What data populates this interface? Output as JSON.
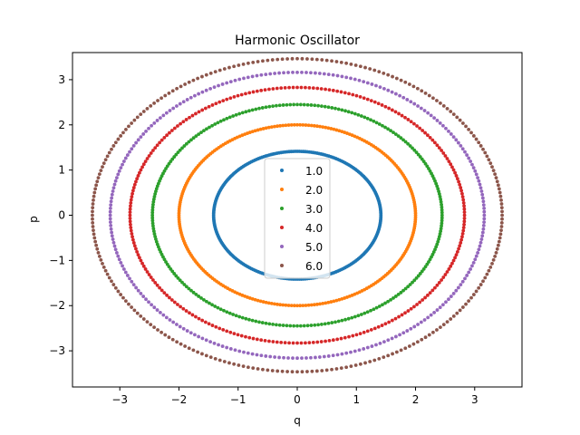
{
  "chart_data": {
    "type": "scatter",
    "title": "Harmonic Oscillator",
    "xlabel": "q",
    "ylabel": "p",
    "xlim": [
      -3.8,
      3.8
    ],
    "ylim": [
      -3.8,
      3.6
    ],
    "xticks": [
      -3,
      -2,
      -1,
      0,
      1,
      2,
      3
    ],
    "yticks": [
      -3,
      -2,
      -1,
      0,
      1,
      2,
      3
    ],
    "xtick_labels": [
      "−3",
      "−2",
      "−1",
      "0",
      "1",
      "2",
      "3"
    ],
    "ytick_labels": [
      "−3",
      "−2",
      "−1",
      "0",
      "1",
      "2",
      "3"
    ],
    "grid": false,
    "legend_position": "center",
    "series": [
      {
        "name": "1.0",
        "energy": 1.0,
        "radius": 1.414,
        "color": "#1f77b4"
      },
      {
        "name": "2.0",
        "energy": 2.0,
        "radius": 2.0,
        "color": "#ff7f0e"
      },
      {
        "name": "3.0",
        "energy": 3.0,
        "radius": 2.449,
        "color": "#2ca02c"
      },
      {
        "name": "4.0",
        "energy": 4.0,
        "radius": 2.828,
        "color": "#d62728"
      },
      {
        "name": "5.0",
        "energy": 5.0,
        "radius": 3.162,
        "color": "#9467bd"
      },
      {
        "name": "6.0",
        "energy": 6.0,
        "radius": 3.464,
        "color": "#8c564b"
      }
    ]
  }
}
